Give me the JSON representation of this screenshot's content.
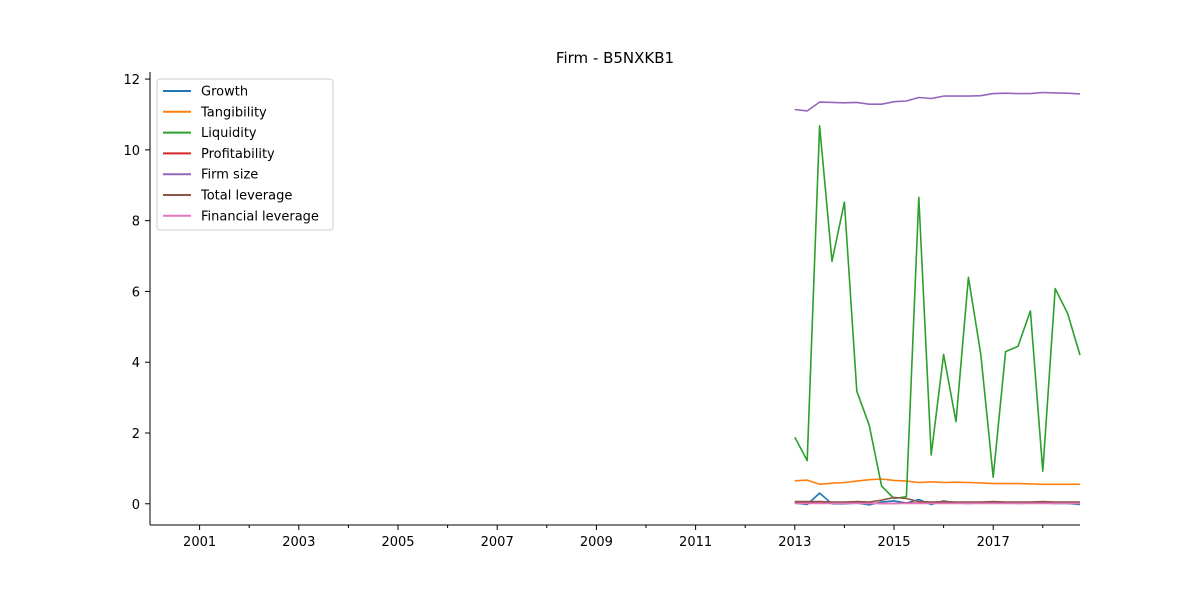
{
  "chart_data": {
    "type": "line",
    "title": "Firm - B5NXKB1",
    "xlabel": "",
    "ylabel": "",
    "xlim": [
      2000.0,
      2018.75
    ],
    "ylim": [
      -0.6,
      12.2
    ],
    "x_ticks": [
      2001,
      2003,
      2005,
      2007,
      2009,
      2011,
      2013,
      2015,
      2017
    ],
    "x_minor_ticks": [
      2002,
      2004,
      2006,
      2008,
      2010,
      2012,
      2014,
      2016,
      2018
    ],
    "y_ticks": [
      0,
      2,
      4,
      6,
      8,
      10,
      12
    ],
    "legend_position": "top-left",
    "grid": false,
    "x": [
      2013.0,
      2013.25,
      2013.5,
      2013.75,
      2014.0,
      2014.25,
      2014.5,
      2014.75,
      2015.0,
      2015.25,
      2015.5,
      2015.75,
      2016.0,
      2016.25,
      2016.5,
      2016.75,
      2017.0,
      2017.25,
      2017.5,
      2017.75,
      2018.0,
      2018.25,
      2018.5,
      2018.75
    ],
    "series": [
      {
        "name": "Growth",
        "color": "#1f77b4",
        "values": [
          0.02,
          -0.02,
          0.3,
          0.0,
          0.0,
          0.02,
          -0.03,
          0.05,
          0.08,
          0.02,
          0.12,
          -0.02,
          0.08,
          0.02,
          0.01,
          0.02,
          0.04,
          0.02,
          0.01,
          0.02,
          0.02,
          0.01,
          0.01,
          -0.02
        ]
      },
      {
        "name": "Tangibility",
        "color": "#ff7f0e",
        "values": [
          0.65,
          0.67,
          0.55,
          0.58,
          0.6,
          0.64,
          0.68,
          0.7,
          0.66,
          0.64,
          0.6,
          0.62,
          0.6,
          0.61,
          0.6,
          0.59,
          0.57,
          0.57,
          0.57,
          0.56,
          0.55,
          0.55,
          0.55,
          0.55
        ]
      },
      {
        "name": "Liquidity",
        "color": "#2ca02c",
        "values": [
          1.88,
          1.22,
          10.68,
          6.85,
          8.52,
          3.18,
          2.22,
          0.5,
          0.15,
          0.2,
          8.66,
          1.38,
          4.22,
          2.32,
          6.4,
          4.22,
          0.75,
          4.3,
          4.45,
          5.45,
          0.92,
          6.08,
          5.38,
          4.2
        ]
      },
      {
        "name": "Profitability",
        "color": "#d62728",
        "values": [
          0.03,
          0.03,
          0.02,
          0.02,
          0.02,
          0.02,
          0.02,
          0.01,
          0.01,
          0.02,
          0.02,
          0.02,
          0.02,
          0.02,
          0.02,
          0.02,
          0.02,
          0.02,
          0.02,
          0.02,
          0.02,
          0.02,
          0.02,
          0.02
        ]
      },
      {
        "name": "Firm size",
        "color": "#9467bd",
        "values": [
          11.14,
          11.1,
          11.35,
          11.34,
          11.33,
          11.34,
          11.29,
          11.29,
          11.36,
          11.38,
          11.48,
          11.45,
          11.52,
          11.52,
          11.52,
          11.53,
          11.59,
          11.6,
          11.59,
          11.59,
          11.62,
          11.61,
          11.6,
          11.58
        ]
      },
      {
        "name": "Total leverage",
        "color": "#8c564b",
        "values": [
          0.06,
          0.06,
          0.06,
          0.05,
          0.05,
          0.06,
          0.05,
          0.1,
          0.18,
          0.15,
          0.06,
          0.05,
          0.06,
          0.05,
          0.05,
          0.05,
          0.06,
          0.05,
          0.05,
          0.05,
          0.06,
          0.05,
          0.05,
          0.05
        ]
      },
      {
        "name": "Financial leverage",
        "color": "#e377c2",
        "values": [
          0.01,
          0.01,
          0.01,
          0.01,
          0.01,
          0.01,
          0.01,
          0.01,
          0.01,
          0.01,
          0.01,
          0.01,
          0.01,
          0.01,
          0.01,
          0.01,
          0.01,
          0.01,
          0.01,
          0.01,
          0.01,
          0.01,
          0.01,
          0.01
        ]
      }
    ]
  }
}
